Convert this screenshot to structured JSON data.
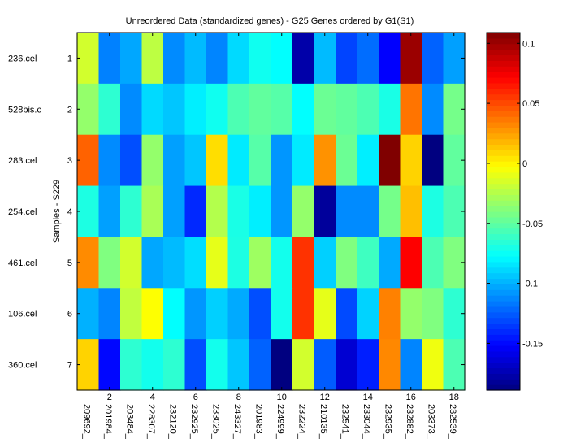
{
  "chart_data": {
    "type": "heatmap",
    "title": "Unreordered Data (standardized genes) - G25 Genes ordered by G1(S1)",
    "ylabel": "Samples - S229",
    "xlabel": "",
    "row_labels": [
      "236.cel",
      "528bis.c",
      "283.cel",
      "254.cel",
      "461.cel",
      "106.cel",
      "360.cel"
    ],
    "row_ticks": [
      "1",
      "2",
      "3",
      "4",
      "5",
      "6",
      "7"
    ],
    "col_labels": [
      "209692_",
      "201984_",
      "203484_",
      "228307_",
      "232120_",
      "232925_",
      "233025_",
      "243327_",
      "201983_",
      "224999_",
      "232224_",
      "210135_",
      "232541_",
      "233044_",
      "232935_",
      "232882_",
      "203373_",
      "232539_"
    ],
    "col_ticks": [
      "2",
      "4",
      "6",
      "8",
      "10",
      "12",
      "14",
      "16",
      "18"
    ],
    "colorbar": {
      "colormap": "jet",
      "range": [
        -0.189,
        0.109
      ],
      "ticks": [
        0.1,
        0.05,
        0,
        -0.05,
        -0.1,
        -0.15
      ],
      "tick_labels": [
        "0.1",
        "0.05",
        "0",
        "-0.05",
        "-0.1",
        "-0.15"
      ]
    },
    "values": [
      [
        -0.016,
        -0.114,
        -0.103,
        -0.022,
        -0.111,
        -0.097,
        -0.113,
        -0.088,
        -0.073,
        -0.077,
        -0.177,
        -0.097,
        -0.132,
        -0.12,
        -0.152,
        0.101,
        -0.123,
        -0.105
      ],
      [
        -0.034,
        -0.064,
        -0.111,
        -0.088,
        -0.094,
        -0.082,
        -0.073,
        -0.055,
        -0.049,
        -0.052,
        -0.077,
        -0.046,
        -0.049,
        -0.055,
        -0.07,
        0.038,
        -0.111,
        -0.043
      ],
      [
        0.043,
        -0.111,
        -0.129,
        -0.034,
        -0.105,
        -0.094,
        0.007,
        -0.083,
        -0.052,
        -0.108,
        -0.083,
        0.029,
        -0.046,
        -0.082,
        0.109,
        0.01,
        -0.189,
        -0.049
      ],
      [
        -0.069,
        -0.105,
        -0.064,
        -0.028,
        -0.105,
        -0.14,
        -0.025,
        -0.07,
        -0.082,
        -0.108,
        -0.034,
        -0.181,
        -0.111,
        -0.111,
        -0.043,
        0.016,
        -0.069,
        -0.055
      ],
      [
        0.031,
        -0.04,
        -0.016,
        -0.103,
        -0.097,
        -0.087,
        -0.01,
        -0.069,
        -0.031,
        -0.072,
        0.057,
        -0.091,
        -0.04,
        -0.059,
        -0.102,
        0.072,
        -0.055,
        -0.04
      ],
      [
        -0.1,
        -0.113,
        -0.021,
        -0.003,
        -0.077,
        -0.108,
        -0.091,
        -0.102,
        -0.129,
        -0.072,
        0.057,
        -0.01,
        -0.13,
        -0.09,
        0.034,
        -0.034,
        -0.04,
        -0.064
      ],
      [
        0.01,
        -0.15,
        -0.064,
        -0.072,
        -0.064,
        -0.129,
        -0.072,
        -0.094,
        -0.123,
        -0.189,
        -0.016,
        -0.125,
        -0.165,
        -0.143,
        0.032,
        -0.113,
        -0.007,
        -0.055
      ]
    ]
  }
}
